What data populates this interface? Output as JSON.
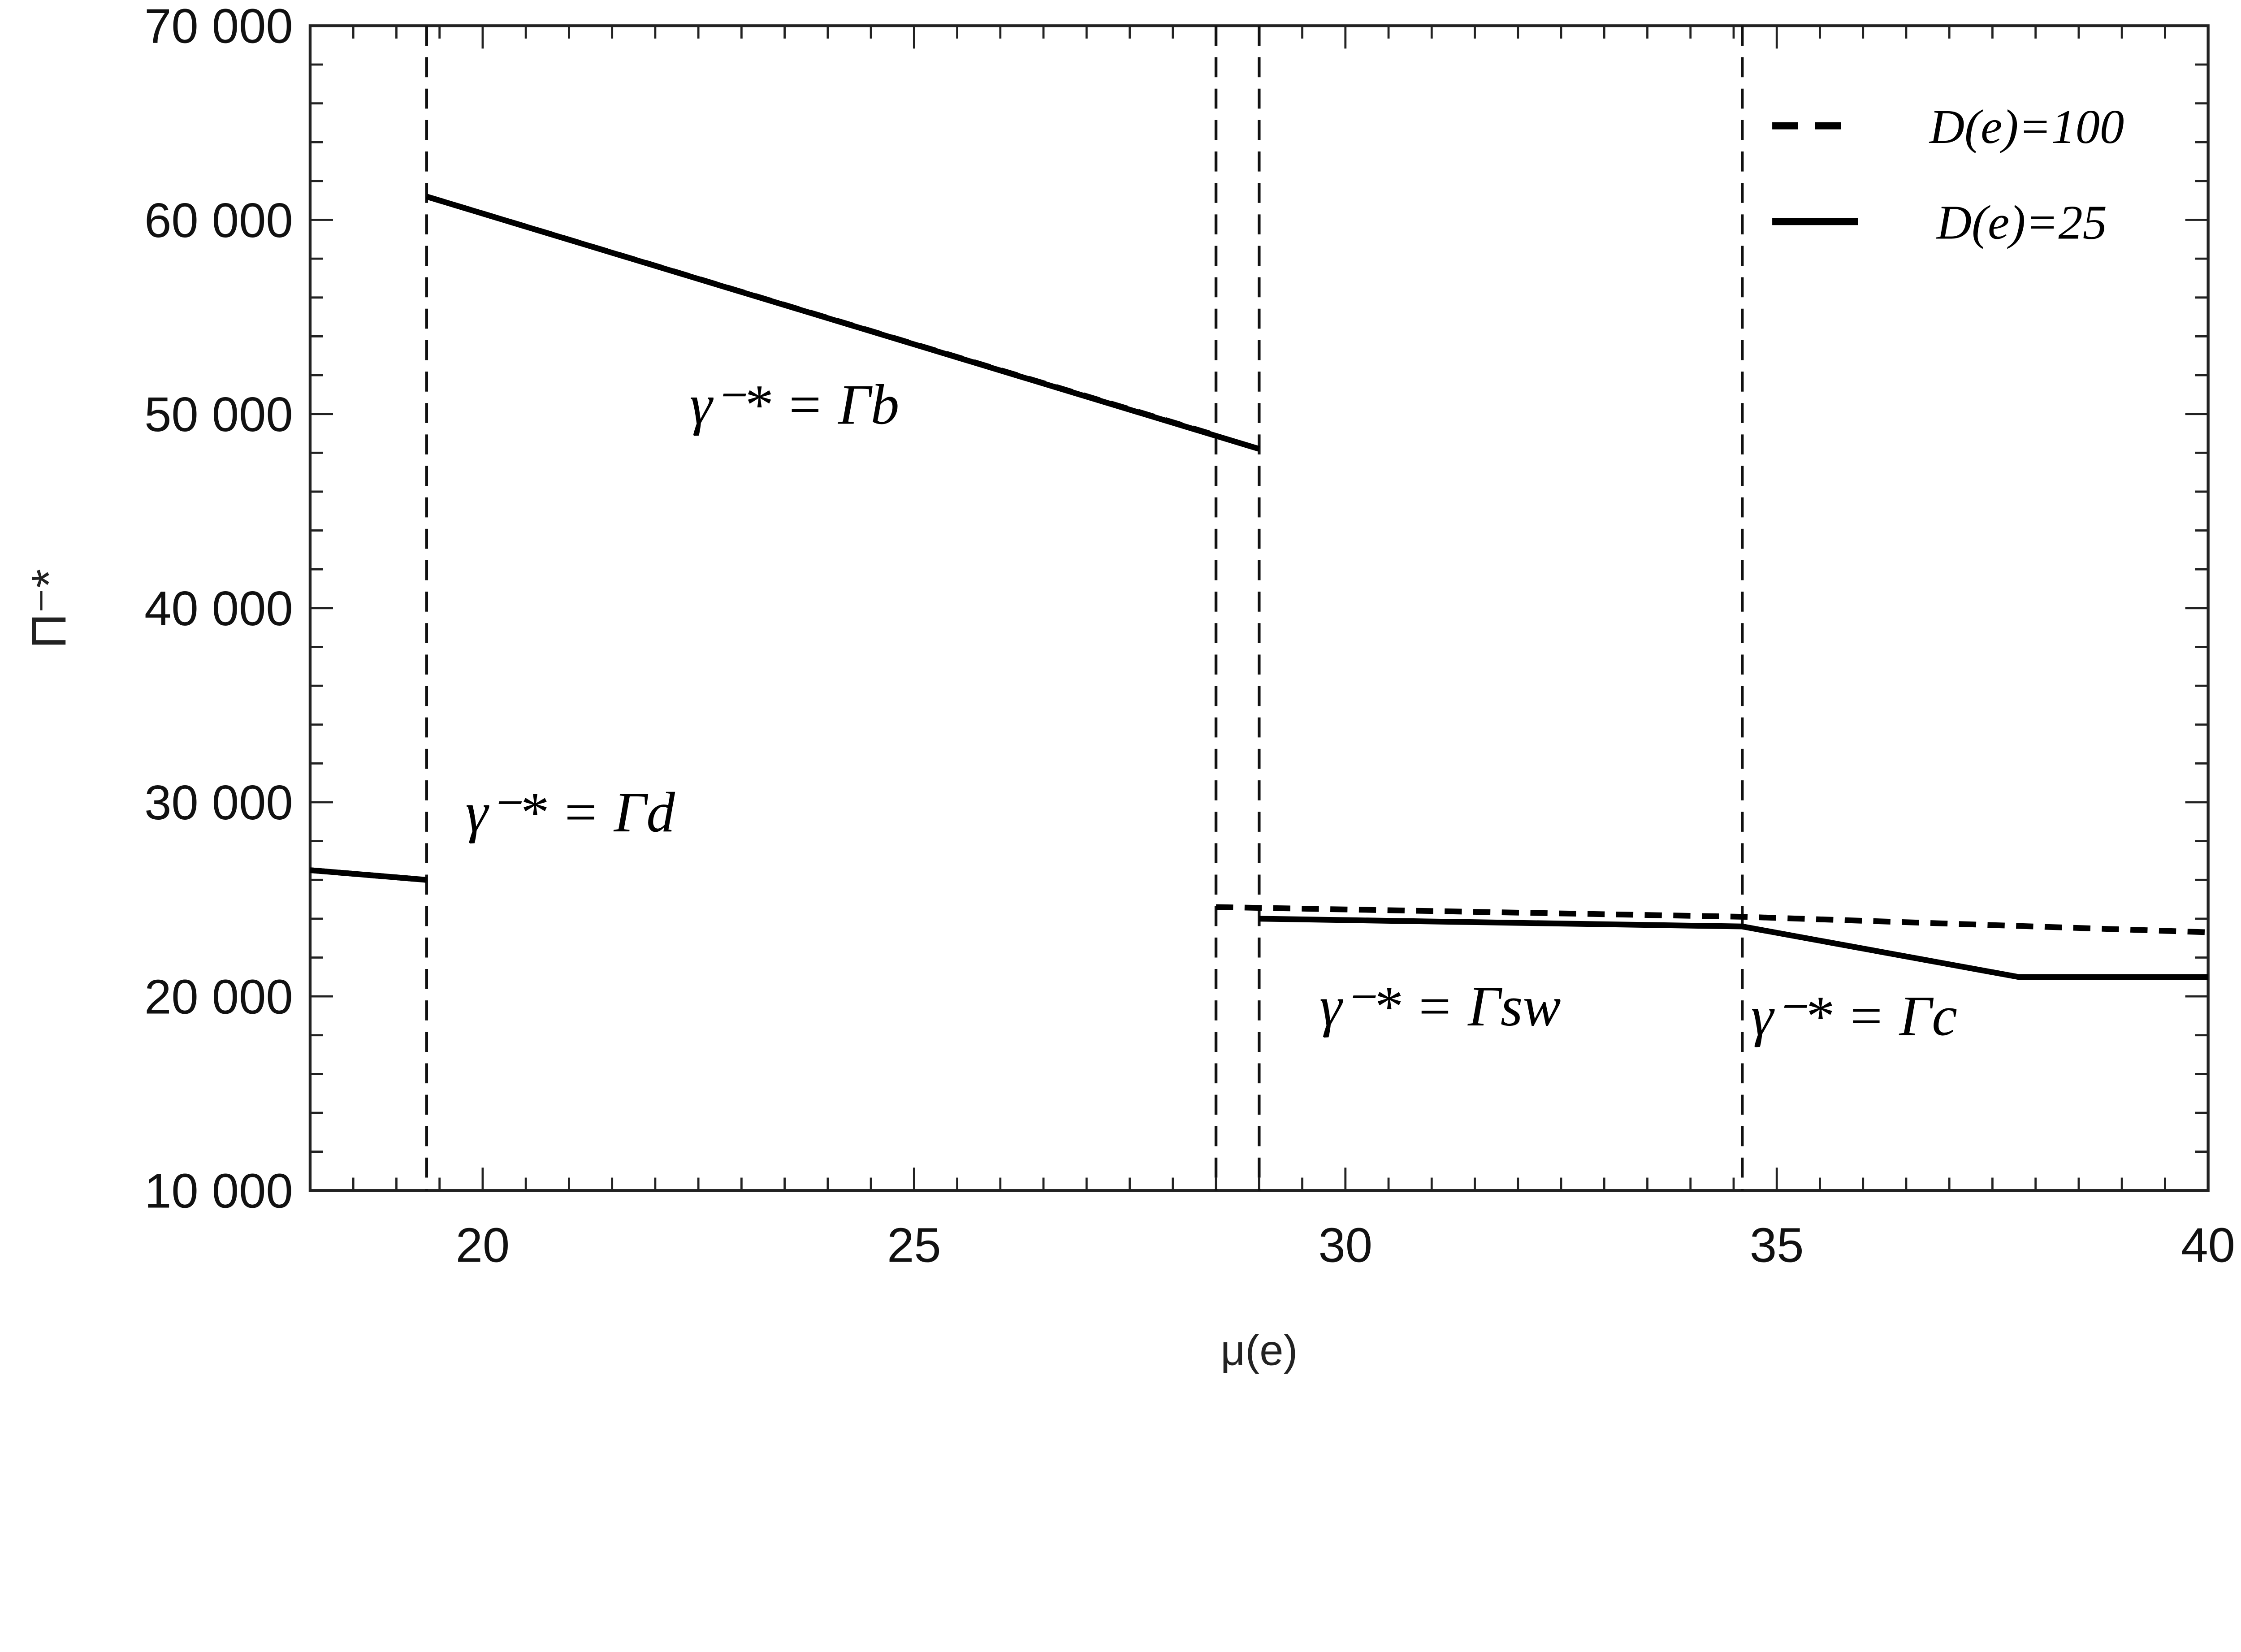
{
  "chart_data": {
    "type": "line",
    "title": "",
    "xlabel": "μ(e)",
    "ylabel": "Π⁻*",
    "xlim": [
      18,
      40
    ],
    "ylim": [
      10000,
      70000
    ],
    "xticks": [
      20,
      25,
      30,
      35,
      40
    ],
    "yticks": [
      10000,
      20000,
      30000,
      40000,
      50000,
      60000,
      70000
    ],
    "ytick_labels": [
      "10 000",
      "20 000",
      "30 000",
      "40 000",
      "50 000",
      "60 000",
      "70 000"
    ],
    "grid": false,
    "legend_position": "top-right",
    "series": [
      {
        "name": "D(e)=100",
        "style": "dashed",
        "segments": [
          [
            [
              18,
              26500
            ],
            [
              19.35,
              26000
            ]
          ],
          [
            [
              19.35,
              61200
            ],
            [
              28.5,
              48900
            ]
          ],
          [
            [
              28.5,
              24600
            ],
            [
              34.6,
              24100
            ],
            [
              40,
              23300
            ]
          ]
        ]
      },
      {
        "name": "D(e)=25",
        "style": "solid",
        "segments": [
          [
            [
              18,
              26500
            ],
            [
              19.35,
              26000
            ]
          ],
          [
            [
              19.35,
              61200
            ],
            [
              29,
              48200
            ]
          ],
          [
            [
              29,
              24000
            ],
            [
              34.6,
              23600
            ],
            [
              37.8,
              21000
            ],
            [
              40,
              21000
            ]
          ]
        ]
      }
    ],
    "vertical_dashed_lines": [
      19.35,
      28.5,
      29,
      34.6
    ],
    "annotations": [
      {
        "text": "γ⁻* = Γd",
        "base": "γ",
        "sup": "−*",
        "eq": " = Γ",
        "sub": "d",
        "x": 19.8,
        "y": 28500
      },
      {
        "text": "γ⁻* = Γb",
        "base": "γ",
        "sup": "−*",
        "eq": " = Γ",
        "sub": "b",
        "x": 22.4,
        "y": 49500
      },
      {
        "text": "γ⁻* = Γsw",
        "base": "γ",
        "sup": "−*",
        "eq": " = Γ",
        "sub": "sw",
        "x": 29.7,
        "y": 18500
      },
      {
        "text": "γ⁻* = Γc",
        "base": "γ",
        "sup": "−*",
        "eq": " = Γ",
        "sub": "c",
        "x": 34.7,
        "y": 18000
      }
    ]
  }
}
